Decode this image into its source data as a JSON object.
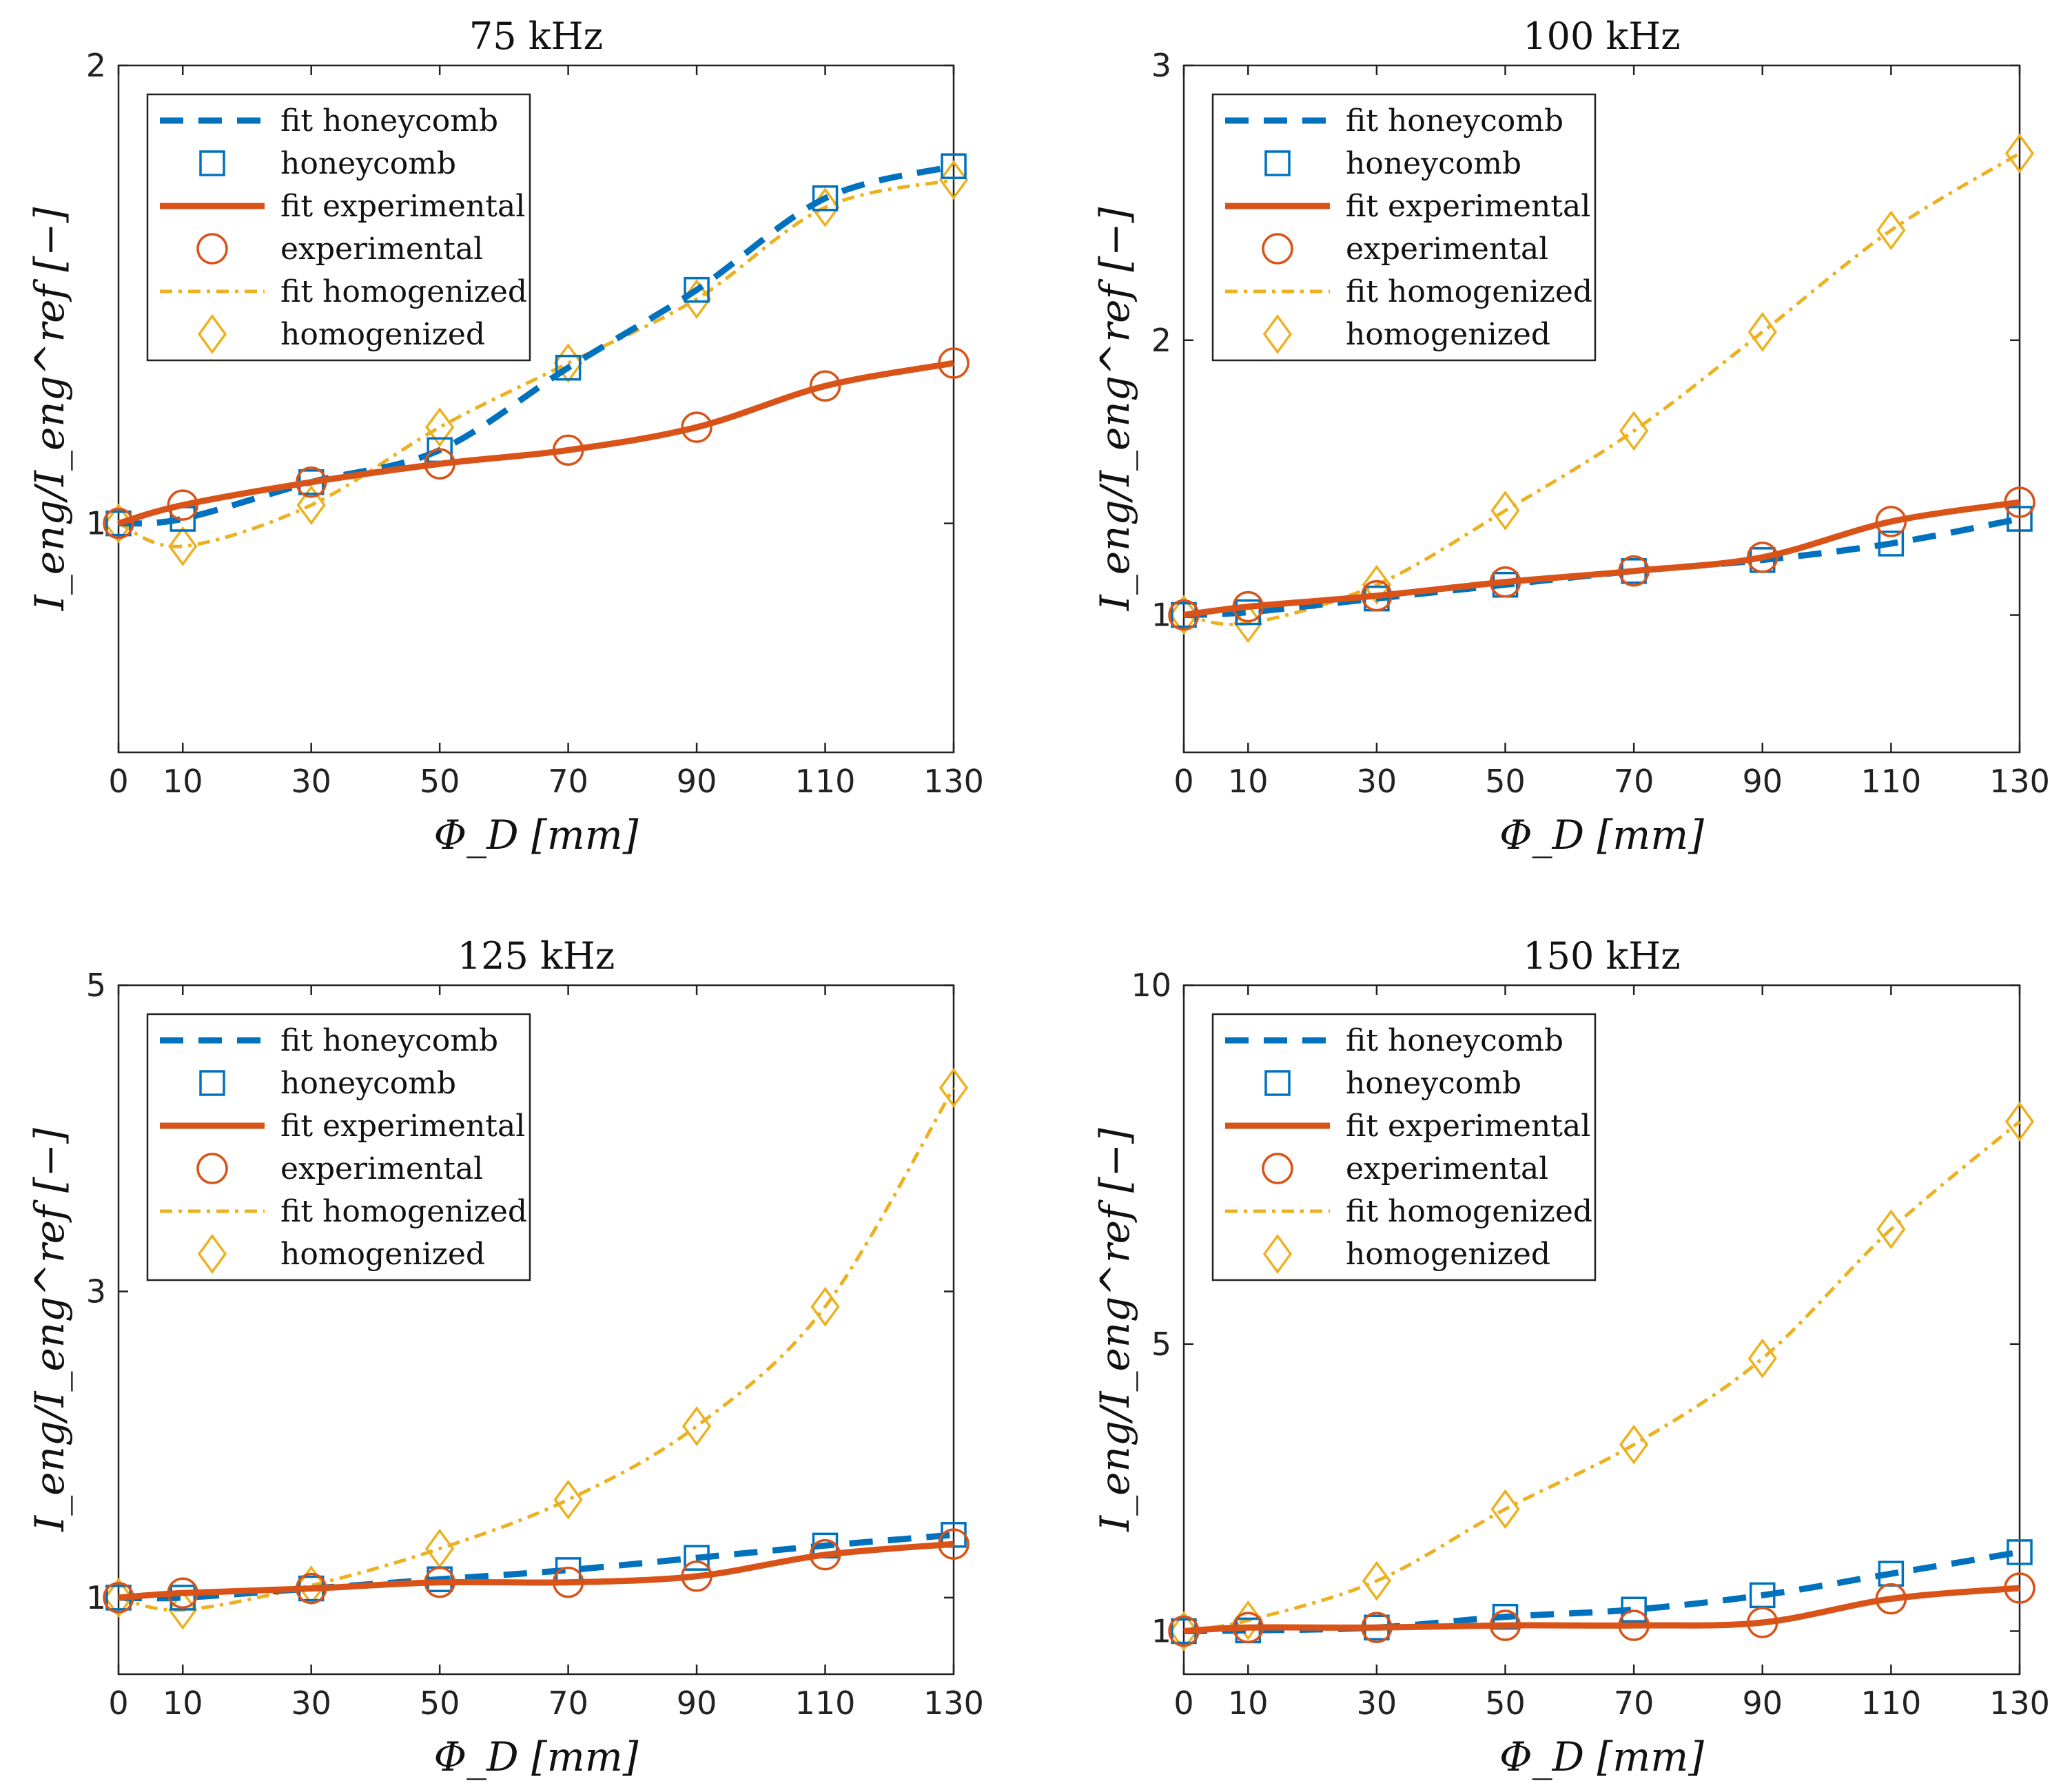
{
  "colors": {
    "honeycomb": "#0072BD",
    "experimental": "#D95319",
    "homogenized": "#EDB120"
  },
  "legend": {
    "fit_honeycomb": "fit honeycomb",
    "honeycomb": "honeycomb",
    "fit_experimental": "fit experimental",
    "experimental": "experimental",
    "fit_homogenized": "fit homogenized",
    "homogenized": "homogenized"
  },
  "chart_data": [
    {
      "type": "line",
      "title": "75 kHz",
      "xlabel": "Φ_D [mm]",
      "ylabel": "I_eng/I_eng^ref [−]",
      "x": [
        0,
        10,
        30,
        50,
        70,
        90,
        110,
        130
      ],
      "xticks": [
        "0",
        "10",
        "30",
        "50",
        "70",
        "90",
        "110",
        "130"
      ],
      "xlim": [
        0,
        130
      ],
      "ylim": [
        0.5,
        2.0
      ],
      "yticks": [
        1,
        2
      ],
      "ytick_labels": [
        "1",
        "2"
      ],
      "legend_position": "top-left",
      "series": [
        {
          "name": "honeycomb",
          "values": [
            1.0,
            1.01,
            1.09,
            1.16,
            1.34,
            1.51,
            1.71,
            1.78
          ]
        },
        {
          "name": "experimental",
          "values": [
            1.0,
            1.04,
            1.09,
            1.13,
            1.16,
            1.21,
            1.3,
            1.35
          ]
        },
        {
          "name": "homogenized",
          "values": [
            1.0,
            0.95,
            1.04,
            1.21,
            1.35,
            1.49,
            1.69,
            1.75
          ]
        }
      ]
    },
    {
      "type": "line",
      "title": "100 kHz",
      "xlabel": "Φ_D [mm]",
      "ylabel": "I_eng/I_eng^ref [−]",
      "x": [
        0,
        10,
        30,
        50,
        70,
        90,
        110,
        130
      ],
      "xticks": [
        "0",
        "10",
        "30",
        "50",
        "70",
        "90",
        "110",
        "130"
      ],
      "xlim": [
        0,
        130
      ],
      "ylim": [
        0.5,
        3.0
      ],
      "yticks": [
        1,
        2,
        3
      ],
      "ytick_labels": [
        "1",
        "2",
        "3"
      ],
      "legend_position": "top-left",
      "series": [
        {
          "name": "honeycomb",
          "values": [
            1.0,
            1.01,
            1.06,
            1.11,
            1.16,
            1.2,
            1.26,
            1.35
          ]
        },
        {
          "name": "experimental",
          "values": [
            1.0,
            1.03,
            1.07,
            1.12,
            1.16,
            1.21,
            1.34,
            1.41
          ]
        },
        {
          "name": "homogenized",
          "values": [
            1.0,
            0.97,
            1.11,
            1.38,
            1.67,
            2.03,
            2.4,
            2.68
          ]
        }
      ]
    },
    {
      "type": "line",
      "title": "125 kHz",
      "xlabel": "Φ_D [mm]",
      "ylabel": "I_eng/I_eng^ref [−]",
      "x": [
        0,
        10,
        30,
        50,
        70,
        90,
        110,
        130
      ],
      "xticks": [
        "0",
        "10",
        "30",
        "50",
        "70",
        "90",
        "110",
        "130"
      ],
      "xlim": [
        0,
        130
      ],
      "ylim": [
        0.5,
        5.0
      ],
      "yticks": [
        1,
        3,
        5
      ],
      "ytick_labels": [
        "1",
        "3",
        "5"
      ],
      "legend_position": "top-left",
      "series": [
        {
          "name": "honeycomb",
          "values": [
            1.0,
            1.0,
            1.06,
            1.12,
            1.18,
            1.26,
            1.34,
            1.41
          ]
        },
        {
          "name": "experimental",
          "values": [
            1.0,
            1.03,
            1.06,
            1.1,
            1.1,
            1.14,
            1.28,
            1.35
          ]
        },
        {
          "name": "homogenized",
          "values": [
            1.0,
            0.92,
            1.08,
            1.32,
            1.64,
            2.12,
            2.9,
            4.33
          ]
        }
      ]
    },
    {
      "type": "line",
      "title": "150 kHz",
      "xlabel": "Φ_D [mm]",
      "ylabel": "I_eng/I_eng^ref [−]",
      "x": [
        0,
        10,
        30,
        50,
        70,
        90,
        110,
        130
      ],
      "xticks": [
        "0",
        "10",
        "30",
        "50",
        "70",
        "90",
        "110",
        "130"
      ],
      "xlim": [
        0,
        130
      ],
      "ylim": [
        0.4,
        10.0
      ],
      "yticks": [
        1,
        5,
        10
      ],
      "ytick_labels": [
        "1",
        "5",
        "10"
      ],
      "legend_position": "top-left",
      "series": [
        {
          "name": "honeycomb",
          "values": [
            1.0,
            1.01,
            1.05,
            1.2,
            1.3,
            1.5,
            1.8,
            2.1
          ]
        },
        {
          "name": "experimental",
          "values": [
            1.0,
            1.05,
            1.05,
            1.08,
            1.08,
            1.12,
            1.45,
            1.6
          ]
        },
        {
          "name": "homogenized",
          "values": [
            1.0,
            1.15,
            1.7,
            2.7,
            3.6,
            4.8,
            6.6,
            8.1
          ]
        }
      ]
    }
  ]
}
